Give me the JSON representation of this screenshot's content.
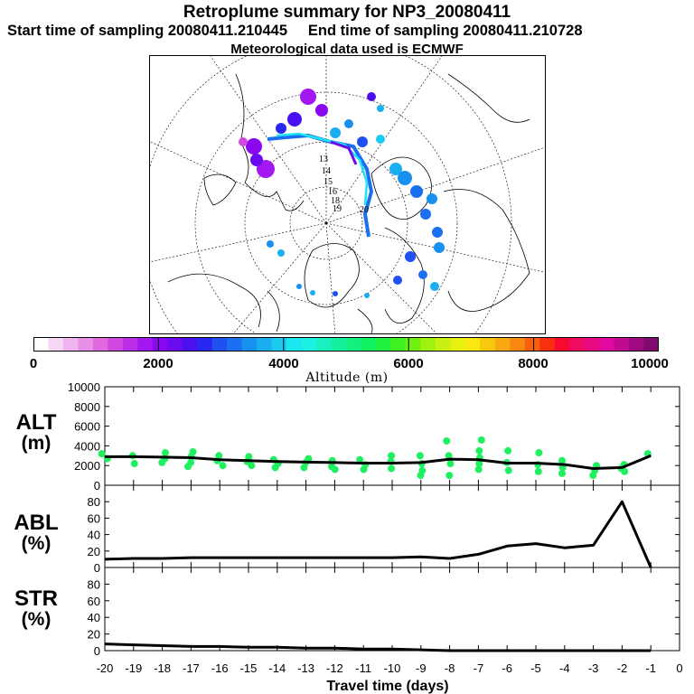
{
  "header": {
    "title": "Retroplume summary for NP3_20080411",
    "sampling_line": "Start time of sampling 20080411.210445     End time of sampling 20080411.210728",
    "met_line": "Meteorological data used is ECMWF"
  },
  "colorbar": {
    "tick_labels": [
      "0",
      "2000",
      "4000",
      "6000",
      "8000",
      "10000"
    ],
    "title": "Altitude (m)",
    "colors": [
      "#ffffff",
      "#f6d8f6",
      "#efb4ef",
      "#e890e8",
      "#df6adf",
      "#d048e0",
      "#bb2ee8",
      "#a318f0",
      "#8a08f0",
      "#6c0af0",
      "#4a10f0",
      "#2828f0",
      "#2050f0",
      "#1a70f0",
      "#1890f0",
      "#1aaef0",
      "#1ccaf0",
      "#1ce6f0",
      "#1cf0e0",
      "#18f0c0",
      "#14f0a0",
      "#12f080",
      "#10f060",
      "#20f040",
      "#40f020",
      "#70f010",
      "#a0f010",
      "#c8f010",
      "#e8f010",
      "#f8e810",
      "#f8c810",
      "#f8a810",
      "#f88810",
      "#f86010",
      "#f83010",
      "#f80a30",
      "#f00a60",
      "#e80a80",
      "#e00aa0",
      "#c00a90",
      "#a00a80",
      "#800a70"
    ]
  },
  "map": {
    "number_labels": [
      "13",
      "14",
      "15",
      "16",
      "18",
      "19",
      "20"
    ]
  },
  "panels": {
    "alt": {
      "label_line1": "ALT",
      "label_line2": "(m)"
    },
    "abl": {
      "label_line1": "ABL",
      "label_line2": "(%)"
    },
    "str": {
      "label_line1": "STR",
      "label_line2": "(%)"
    }
  },
  "chart_data": [
    {
      "type": "line",
      "name": "ALT",
      "ylabel": "ALT (m)",
      "ylim": [
        0,
        10000
      ],
      "yticks": [
        0,
        2000,
        4000,
        6000,
        8000,
        10000
      ],
      "x": [
        -20,
        -19,
        -18,
        -17,
        -16,
        -15,
        -14,
        -13,
        -12,
        -11,
        -10,
        -9,
        -8,
        -7,
        -6,
        -5,
        -4,
        -3,
        -2,
        -1
      ],
      "values": [
        2900,
        2900,
        2850,
        2800,
        2600,
        2500,
        2400,
        2350,
        2300,
        2250,
        2250,
        2300,
        2650,
        2600,
        2250,
        2250,
        2100,
        1700,
        1800,
        3000
      ],
      "scatter_points": [
        [
          -20,
          3200
        ],
        [
          -20,
          2700
        ],
        [
          -19,
          3000
        ],
        [
          -19,
          2200
        ],
        [
          -18,
          3300
        ],
        [
          -18,
          2700
        ],
        [
          -18,
          2300
        ],
        [
          -17,
          3400
        ],
        [
          -17,
          2900
        ],
        [
          -17,
          2300
        ],
        [
          -17,
          1900
        ],
        [
          -16,
          3000
        ],
        [
          -16,
          2500
        ],
        [
          -16,
          2000
        ],
        [
          -15,
          2900
        ],
        [
          -15,
          2400
        ],
        [
          -15,
          2000
        ],
        [
          -14,
          2600
        ],
        [
          -14,
          2200
        ],
        [
          -14,
          1800
        ],
        [
          -13,
          2700
        ],
        [
          -13,
          2300
        ],
        [
          -13,
          1800
        ],
        [
          -12,
          2500
        ],
        [
          -12,
          1900
        ],
        [
          -12,
          1600
        ],
        [
          -11,
          2600
        ],
        [
          -11,
          2100
        ],
        [
          -11,
          1600
        ],
        [
          -10,
          3000
        ],
        [
          -10,
          2400
        ],
        [
          -10,
          1700
        ],
        [
          -9,
          3000
        ],
        [
          -9,
          2200
        ],
        [
          -9,
          1500
        ],
        [
          -9,
          1000
        ],
        [
          -8,
          4500
        ],
        [
          -8,
          3000
        ],
        [
          -8,
          2200
        ],
        [
          -8,
          1000
        ],
        [
          -7,
          4600
        ],
        [
          -7,
          3500
        ],
        [
          -7,
          2800
        ],
        [
          -7,
          2200
        ],
        [
          -7,
          1600
        ],
        [
          -6,
          3500
        ],
        [
          -6,
          2300
        ],
        [
          -6,
          1500
        ],
        [
          -5,
          3300
        ],
        [
          -5,
          2100
        ],
        [
          -5,
          1400
        ],
        [
          -4,
          2500
        ],
        [
          -4,
          1800
        ],
        [
          -4,
          1200
        ],
        [
          -3,
          2000
        ],
        [
          -3,
          1500
        ],
        [
          -3,
          1000
        ],
        [
          -2,
          2100
        ],
        [
          -2,
          1700
        ],
        [
          -2,
          1400
        ],
        [
          -1,
          3200
        ]
      ]
    },
    {
      "type": "line",
      "name": "ABL",
      "ylabel": "ABL (%)",
      "ylim": [
        0,
        100
      ],
      "yticks": [
        0,
        20,
        40,
        60,
        80
      ],
      "x": [
        -20,
        -19,
        -18,
        -17,
        -16,
        -15,
        -14,
        -13,
        -12,
        -11,
        -10,
        -9,
        -8,
        -7,
        -6,
        -5,
        -4,
        -3,
        -2,
        -1
      ],
      "values": [
        10,
        11,
        11,
        12,
        12,
        12,
        12,
        12,
        12,
        12,
        12,
        13,
        11,
        16,
        26,
        29,
        24,
        27,
        80,
        0
      ]
    },
    {
      "type": "line",
      "name": "STR",
      "ylabel": "STR (%)",
      "ylim": [
        0,
        100
      ],
      "yticks": [
        0,
        20,
        40,
        60,
        80
      ],
      "x": [
        -20,
        -19,
        -18,
        -17,
        -16,
        -15,
        -14,
        -13,
        -12,
        -11,
        -10,
        -9,
        -8,
        -7,
        -6,
        -5,
        -4,
        -3,
        -2,
        -1
      ],
      "values": [
        8,
        7,
        6,
        5,
        5,
        4,
        4,
        3,
        3,
        2,
        2,
        1,
        0,
        0,
        0,
        0,
        0,
        0,
        0,
        0
      ]
    }
  ],
  "x_axis": {
    "xlabel": "Travel time (days)",
    "tick_labels": [
      "-20",
      "-19",
      "-18",
      "-17",
      "-16",
      "-15",
      "-14",
      "-13",
      "-12",
      "-11",
      "-10",
      "-9",
      "-8",
      "-7",
      "-6",
      "-5",
      "-4",
      "-3",
      "-2",
      "-1",
      "0"
    ],
    "xlim": [
      -20,
      0
    ]
  }
}
